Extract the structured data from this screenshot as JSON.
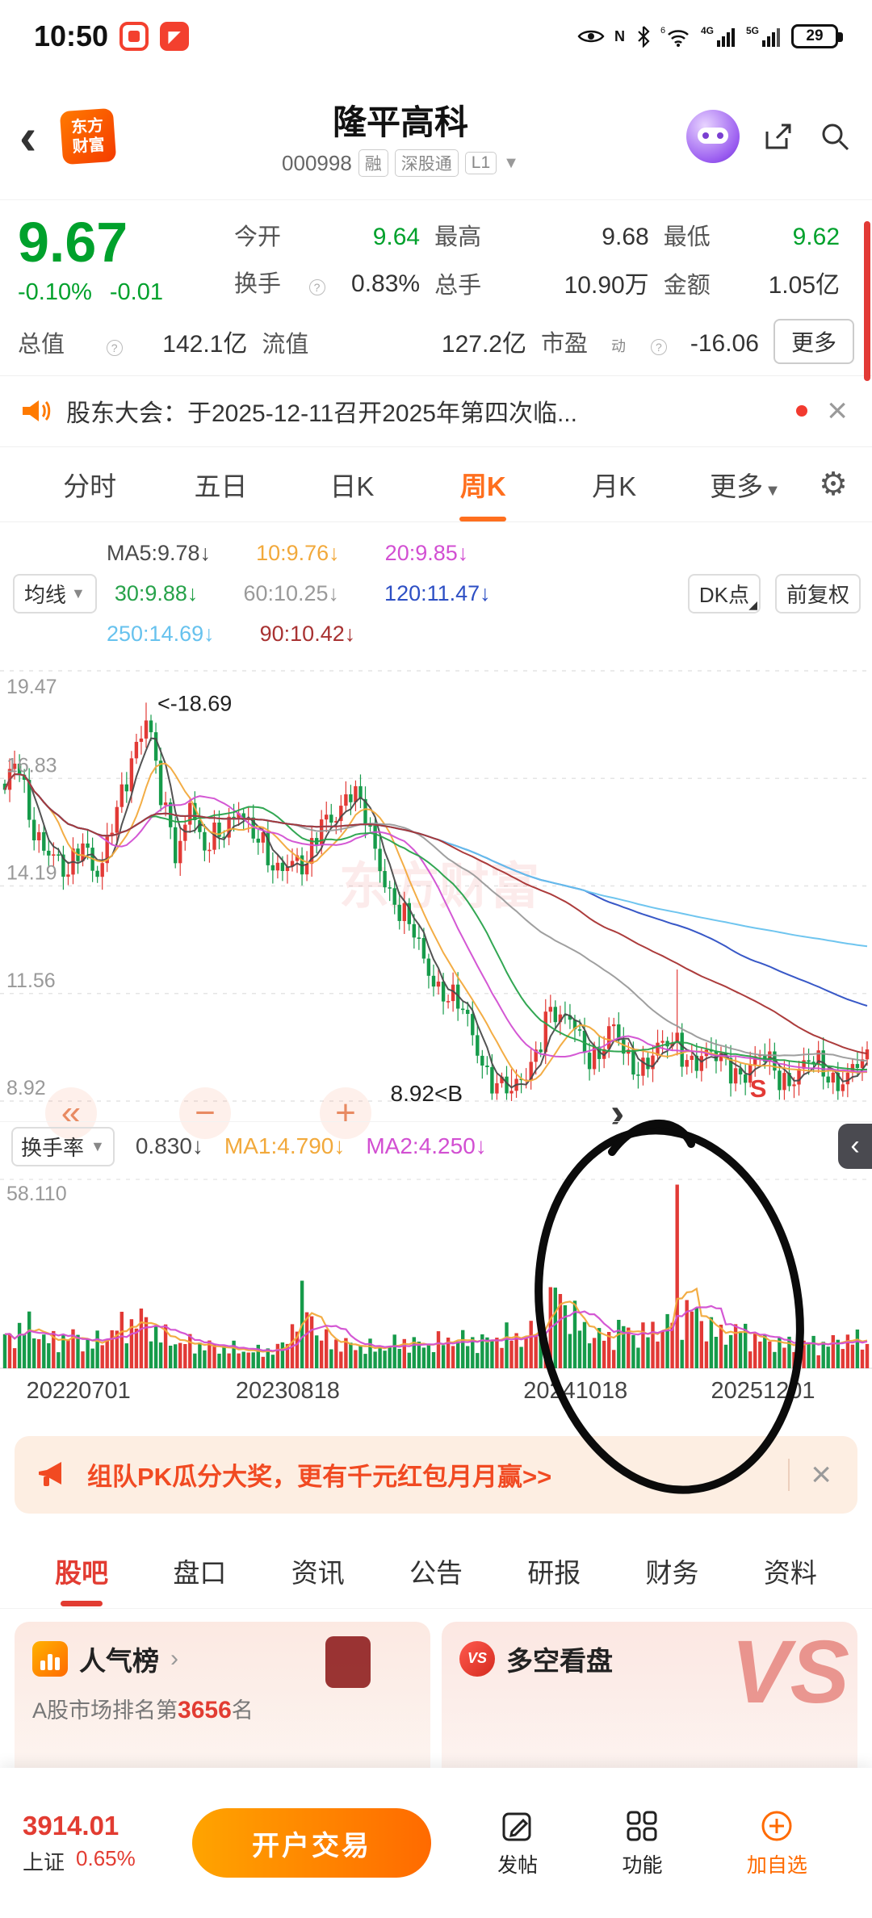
{
  "icons": {
    "gear": "⚙",
    "caret_down": "▼",
    "close": "×",
    "chevron_right": "›",
    "chevron_left": "‹",
    "fast_backward": "«",
    "minus": "−",
    "plus": "+",
    "corner": "◢",
    "nfc": "N"
  },
  "status_bar": {
    "time": "10:50",
    "battery": "29",
    "wifi_sup": "6",
    "net_4g": "4G",
    "net_5g": "5G",
    "nfc": "N"
  },
  "header": {
    "logo_top": "东方",
    "logo_bottom": "财富",
    "title": "隆平高科",
    "code": "000998",
    "tag_rong": "融",
    "tag_szt": "深股通",
    "tag_l1": "L1"
  },
  "quote": {
    "price": "9.67",
    "change_pct": "-0.10%",
    "change_amt": "-0.01",
    "open_label": "今开",
    "open": "9.64",
    "high_label": "最高",
    "high": "9.68",
    "low_label": "最低",
    "low": "9.62",
    "turnover_label": "换手",
    "turnover": "0.83%",
    "vol_label": "总手",
    "vol": "10.90万",
    "amount_label": "金额",
    "amount": "1.05亿",
    "mcap_label": "总值",
    "mcap": "142.1亿",
    "fcap_label": "流值",
    "fcap": "127.2亿",
    "pe_label": "市盈",
    "pe_sup": "动",
    "pe": "-16.06",
    "more": "更多"
  },
  "announcement": {
    "text": "股东大会：于2025-12-11召开2025年第四次临..."
  },
  "period_tabs": {
    "t0": "分时",
    "t1": "五日",
    "t2": "日K",
    "t3": "周K",
    "t4": "月K",
    "t5": "更多"
  },
  "ma_legend": {
    "ma5": "MA5:9.78↓",
    "ma10": "10:9.76↓",
    "ma20": "20:9.85↓",
    "avg_btn": "均线",
    "ma30": "30:9.88↓",
    "ma60": "60:10.25↓",
    "ma120": "120:11.47↓",
    "dk_btn": "DK点",
    "fq_btn": "前复权",
    "ma250": "250:14.69↓",
    "ma90": "90:10.42↓"
  },
  "indicator": {
    "name": "换手率",
    "value": "0.830↓",
    "ma1": "MA1:4.790↓",
    "ma2": "MA2:4.250↓",
    "y_top": "58.110"
  },
  "promo": {
    "text": "组队PK瓜分大奖，更有千元红包月月赢>>"
  },
  "bottom_tabs": {
    "t0": "股吧",
    "t1": "盘口",
    "t2": "资讯",
    "t3": "公告",
    "t4": "研报",
    "t5": "财务",
    "t6": "资料"
  },
  "cards": {
    "left_title": "人气榜",
    "left_sub_prefix": "A股市场排名第",
    "left_sub_rank": "3656",
    "left_sub_suffix": "名",
    "right_title": "多空看盘",
    "vs_badge": "VS",
    "vs_water": "VS"
  },
  "bottom_bar": {
    "index_value": "3914.01",
    "index_name": "上证",
    "index_pct": "0.65%",
    "cta": "开户交易",
    "post": "发帖",
    "features": "功能",
    "add_watch": "加自选"
  },
  "chart_data": {
    "type": "candlestick+volume",
    "title": "隆平高科 周K",
    "y_labels": [
      "19.47",
      "16.83",
      "14.19",
      "11.56",
      "8.92"
    ],
    "x_labels": [
      "20220701",
      "20230818",
      "20241018",
      "20251201"
    ],
    "x_label_pos": [
      9,
      33,
      66,
      87.5
    ],
    "price_range": {
      "min": 8.92,
      "max": 19.47
    },
    "turnover_top": 58.11,
    "candles_n": 178,
    "price_points": [
      [
        0,
        16.3
      ],
      [
        0.015,
        17.2
      ],
      [
        0.03,
        16.0
      ],
      [
        0.05,
        15.0
      ],
      [
        0.07,
        14.2
      ],
      [
        0.09,
        15.6
      ],
      [
        0.11,
        14.3
      ],
      [
        0.13,
        15.9
      ],
      [
        0.15,
        17.8
      ],
      [
        0.165,
        18.4
      ],
      [
        0.18,
        16.2
      ],
      [
        0.2,
        15.0
      ],
      [
        0.215,
        16.6
      ],
      [
        0.23,
        14.8
      ],
      [
        0.25,
        15.4
      ],
      [
        0.27,
        16.4
      ],
      [
        0.29,
        15.2
      ],
      [
        0.31,
        14.6
      ],
      [
        0.33,
        15.1
      ],
      [
        0.35,
        14.4
      ],
      [
        0.37,
        15.9
      ],
      [
        0.4,
        16.5
      ],
      [
        0.42,
        15.6
      ],
      [
        0.44,
        14.6
      ],
      [
        0.46,
        13.4
      ],
      [
        0.48,
        12.6
      ],
      [
        0.5,
        12.0
      ],
      [
        0.52,
        11.3
      ],
      [
        0.54,
        10.6
      ],
      [
        0.56,
        9.8
      ],
      [
        0.575,
        9.2
      ],
      [
        0.59,
        9.0
      ],
      [
        0.6,
        9.4
      ],
      [
        0.615,
        10.3
      ],
      [
        0.63,
        11.2
      ],
      [
        0.645,
        10.6
      ],
      [
        0.66,
        10.9
      ],
      [
        0.675,
        10.3
      ],
      [
        0.69,
        10.0
      ],
      [
        0.705,
        10.5
      ],
      [
        0.72,
        10.1
      ],
      [
        0.74,
        9.9
      ],
      [
        0.76,
        10.0
      ],
      [
        0.78,
        10.4
      ],
      [
        0.8,
        10.0
      ],
      [
        0.82,
        9.8
      ],
      [
        0.84,
        9.9
      ],
      [
        0.86,
        9.7
      ],
      [
        0.88,
        9.8
      ],
      [
        0.9,
        9.6
      ],
      [
        0.93,
        9.7
      ],
      [
        0.96,
        9.6
      ],
      [
        1,
        9.67
      ]
    ],
    "volume_points": [
      [
        0,
        9
      ],
      [
        0.03,
        13
      ],
      [
        0.05,
        8
      ],
      [
        0.08,
        10
      ],
      [
        0.1,
        7
      ],
      [
        0.13,
        12
      ],
      [
        0.16,
        15
      ],
      [
        0.18,
        10
      ],
      [
        0.2,
        8
      ],
      [
        0.23,
        7
      ],
      [
        0.26,
        6
      ],
      [
        0.29,
        5
      ],
      [
        0.32,
        6
      ],
      [
        0.35,
        21
      ],
      [
        0.365,
        9
      ],
      [
        0.4,
        7
      ],
      [
        0.43,
        6
      ],
      [
        0.46,
        8
      ],
      [
        0.49,
        7
      ],
      [
        0.52,
        9
      ],
      [
        0.55,
        8
      ],
      [
        0.58,
        10
      ],
      [
        0.6,
        9
      ],
      [
        0.62,
        13
      ],
      [
        0.64,
        24
      ],
      [
        0.655,
        17
      ],
      [
        0.67,
        12
      ],
      [
        0.685,
        10
      ],
      [
        0.7,
        9
      ],
      [
        0.715,
        13
      ],
      [
        0.73,
        10
      ],
      [
        0.75,
        11
      ],
      [
        0.765,
        13
      ],
      [
        0.78,
        16
      ],
      [
        0.795,
        18
      ],
      [
        0.81,
        14
      ],
      [
        0.83,
        10
      ],
      [
        0.85,
        12
      ],
      [
        0.87,
        9
      ],
      [
        0.89,
        8
      ],
      [
        0.91,
        7
      ],
      [
        0.93,
        8
      ],
      [
        0.95,
        7
      ],
      [
        0.97,
        9
      ],
      [
        1,
        8
      ]
    ],
    "spike_x": 0.778,
    "spike_turnover": 56.5,
    "peak": {
      "x": 0.165,
      "value": 18.69,
      "label": "<-18.69"
    },
    "low": {
      "x": 0.585,
      "value": 8.92,
      "label": "8.92<B"
    },
    "sell_marker": {
      "x": 0.864,
      "label": "S"
    },
    "ma_lines": [
      {
        "n": 5,
        "color": "#4a4a4a"
      },
      {
        "n": 10,
        "color": "#f2a93b"
      },
      {
        "n": 20,
        "color": "#d24fd2"
      },
      {
        "n": 30,
        "color": "#27a24a"
      },
      {
        "n": 60,
        "color": "#9a9a9a"
      },
      {
        "n": 120,
        "color": "#2d4fc4"
      },
      {
        "n": 250,
        "color": "#67c2ee"
      },
      {
        "n": 90,
        "color": "#a83232"
      }
    ],
    "vol_ma": [
      {
        "n": 5,
        "color": "#f2a93b"
      },
      {
        "n": 10,
        "color": "#d24fd2"
      }
    ],
    "up_color": "#e23a36",
    "down_color": "#169b4a",
    "grid": true,
    "watermark": "东方财富"
  }
}
